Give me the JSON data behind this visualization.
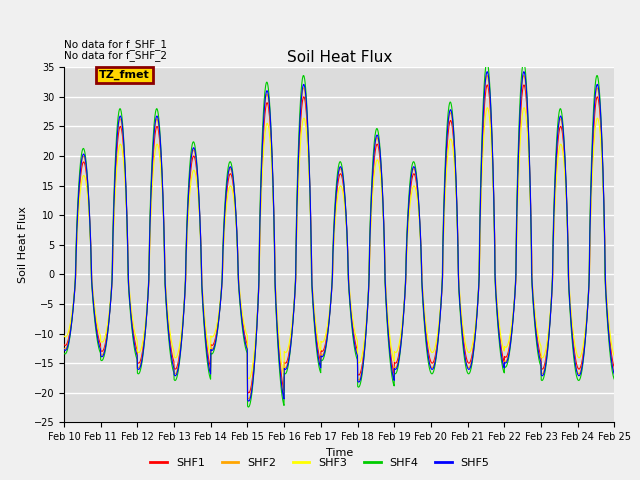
{
  "title": "Soil Heat Flux",
  "ylabel": "Soil Heat Flux",
  "xlabel": "Time",
  "annotations": [
    "No data for f_SHF_1",
    "No data for f_SHF_2"
  ],
  "legend_label": "TZ_fmet",
  "legend_box_facecolor": "#FFD700",
  "legend_box_edgecolor": "#8B0000",
  "ylim": [
    -25,
    35
  ],
  "yticks": [
    -25,
    -20,
    -15,
    -10,
    -5,
    0,
    5,
    10,
    15,
    20,
    25,
    30,
    35
  ],
  "xtick_labels": [
    "Feb 10",
    "Feb 11",
    "Feb 12",
    "Feb 13",
    "Feb 14",
    "Feb 15",
    "Feb 16",
    "Feb 17",
    "Feb 18",
    "Feb 19",
    "Feb 20",
    "Feb 21",
    "Feb 22",
    "Feb 23",
    "Feb 24",
    "Feb 25"
  ],
  "n_days": 15,
  "points_per_day": 144,
  "series_colors": [
    "#FF0000",
    "#FFA500",
    "#FFFF00",
    "#00CC00",
    "#0000FF"
  ],
  "series_names": [
    "SHF1",
    "SHF2",
    "SHF3",
    "SHF4",
    "SHF5"
  ],
  "series_linewidth": 0.8,
  "plot_bg_color": "#DCDCDC",
  "grid_color": "#FFFFFF",
  "fig_bg_color": "#F0F0F0",
  "title_fontsize": 11,
  "axis_label_fontsize": 8,
  "tick_fontsize": 7,
  "day_amps": [
    19,
    25,
    25,
    20,
    17,
    29,
    30,
    17,
    22,
    17,
    26,
    32,
    32,
    25,
    30
  ],
  "night_amps": [
    12,
    13,
    15,
    16,
    12,
    20,
    15,
    13,
    17,
    15,
    15,
    15,
    14,
    16,
    16
  ]
}
